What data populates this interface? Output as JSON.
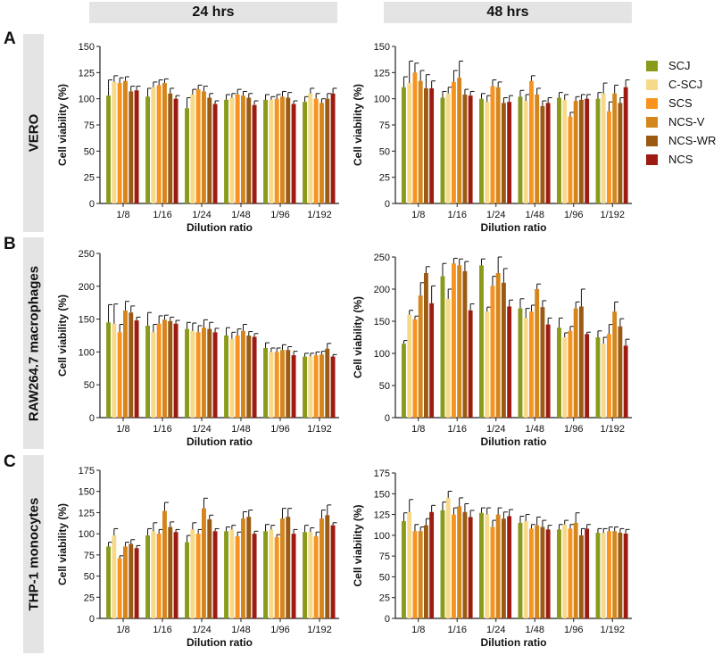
{
  "headers": {
    "col1": "24 hrs",
    "col2": "48 hrs"
  },
  "panels": {
    "a": {
      "letter": "A",
      "row_label": "VERO"
    },
    "b": {
      "letter": "B",
      "row_label": "RAW264.7 macrophages"
    },
    "c": {
      "letter": "C",
      "row_label": "THP-1 monocytes"
    }
  },
  "legend": [
    {
      "name": "SCJ",
      "color": "#8a9a1b"
    },
    {
      "name": "C-SCJ",
      "color": "#f7d98a"
    },
    {
      "name": "SCS",
      "color": "#f7931e"
    },
    {
      "name": "NCS-V",
      "color": "#d4861d"
    },
    {
      "name": "NCS-WR",
      "color": "#9a5a14"
    },
    {
      "name": "NCS",
      "color": "#9e1b12"
    }
  ],
  "chart_data": [
    {
      "type": "bar",
      "id": "A-24h",
      "categories": [
        "1/8",
        "1/16",
        "1/24",
        "1/48",
        "1/96",
        "1/192"
      ],
      "xlabel": "Dilution ratio",
      "ylabel": "Cell viability (%)",
      "ylim": [
        0,
        150
      ],
      "yticks": [
        0,
        25,
        50,
        75,
        100,
        125,
        150
      ],
      "series": [
        {
          "name": "SCJ",
          "values": [
            103,
            102,
            91,
            99,
            99,
            97
          ],
          "errors": [
            15,
            8,
            10,
            5,
            5,
            5
          ]
        },
        {
          "name": "C-SCJ",
          "values": [
            116,
            111,
            104,
            101,
            99,
            105
          ],
          "errors": [
            6,
            5,
            5,
            4,
            3,
            5
          ]
        },
        {
          "name": "SCS",
          "values": [
            115,
            113,
            109,
            104,
            100,
            100
          ],
          "errors": [
            5,
            5,
            4,
            5,
            4,
            5
          ]
        },
        {
          "name": "NCS-V",
          "values": [
            117,
            115,
            107,
            103,
            102,
            96
          ],
          "errors": [
            4,
            4,
            5,
            4,
            5,
            4
          ]
        },
        {
          "name": "NCS-WR",
          "values": [
            107,
            105,
            101,
            101,
            101,
            100
          ],
          "errors": [
            5,
            5,
            4,
            4,
            5,
            5
          ]
        },
        {
          "name": "NCS",
          "values": [
            108,
            100,
            95,
            94,
            95,
            105
          ],
          "errors": [
            4,
            3,
            3,
            4,
            3,
            5
          ]
        }
      ]
    },
    {
      "type": "bar",
      "id": "A-48h",
      "categories": [
        "1/8",
        "1/16",
        "1/24",
        "1/48",
        "1/96",
        "1/192"
      ],
      "xlabel": "Dilution ratio",
      "ylabel": "Cell viability (%)",
      "ylim": [
        0,
        150
      ],
      "yticks": [
        0,
        25,
        50,
        75,
        100,
        125,
        150
      ],
      "series": [
        {
          "name": "SCJ",
          "values": [
            111,
            101,
            100,
            102,
            101,
            100
          ],
          "errors": [
            10,
            6,
            5,
            6,
            5,
            6
          ]
        },
        {
          "name": "C-SCJ",
          "values": [
            115,
            105,
            97,
            98,
            99,
            105
          ],
          "errors": [
            21,
            6,
            6,
            6,
            5,
            10
          ]
        },
        {
          "name": "SCS",
          "values": [
            125,
            116,
            112,
            117,
            83,
            88
          ],
          "errors": [
            9,
            11,
            6,
            5,
            4,
            9
          ]
        },
        {
          "name": "NCS-V",
          "values": [
            117,
            120,
            111,
            104,
            98,
            105
          ],
          "errors": [
            10,
            16,
            5,
            6,
            4,
            8
          ]
        },
        {
          "name": "NCS-WR",
          "values": [
            110,
            104,
            96,
            93,
            99,
            96
          ],
          "errors": [
            13,
            5,
            5,
            5,
            5,
            5
          ]
        },
        {
          "name": "NCS",
          "values": [
            110,
            103,
            97,
            96,
            100,
            111
          ],
          "errors": [
            7,
            4,
            6,
            5,
            4,
            7
          ]
        }
      ]
    },
    {
      "type": "bar",
      "id": "B-24h",
      "categories": [
        "1/8",
        "1/16",
        "1/24",
        "1/48",
        "1/96",
        "1/192"
      ],
      "xlabel": "Dilution ratio",
      "ylabel": "Cell viability (%)",
      "ylim": [
        0,
        250
      ],
      "yticks": [
        0,
        50,
        100,
        150,
        200,
        250
      ],
      "series": [
        {
          "name": "SCJ",
          "values": [
            145,
            140,
            135,
            125,
            106,
            93
          ],
          "errors": [
            27,
            20,
            10,
            12,
            8,
            5
          ]
        },
        {
          "name": "C-SCJ",
          "values": [
            143,
            130,
            132,
            120,
            100,
            93
          ],
          "errors": [
            30,
            12,
            12,
            10,
            6,
            5
          ]
        },
        {
          "name": "SCS",
          "values": [
            130,
            143,
            130,
            125,
            100,
            95
          ],
          "errors": [
            12,
            12,
            10,
            10,
            6,
            5
          ]
        },
        {
          "name": "NCS-V",
          "values": [
            163,
            149,
            137,
            132,
            103,
            96
          ],
          "errors": [
            14,
            7,
            12,
            10,
            8,
            5
          ]
        },
        {
          "name": "NCS-WR",
          "values": [
            160,
            147,
            135,
            125,
            103,
            105
          ],
          "errors": [
            10,
            6,
            10,
            6,
            5,
            8
          ]
        },
        {
          "name": "NCS",
          "values": [
            148,
            143,
            130,
            123,
            95,
            93
          ],
          "errors": [
            5,
            5,
            6,
            5,
            6,
            3
          ]
        }
      ]
    },
    {
      "type": "bar",
      "id": "B-48h",
      "categories": [
        "1/8",
        "1/16",
        "1/24",
        "1/48",
        "1/96",
        "1/192"
      ],
      "xlabel": "Dilution ratio",
      "ylabel": "Cell viability (%)",
      "ylim": [
        0,
        250
      ],
      "yticks": [
        0,
        50,
        100,
        150,
        200,
        250
      ],
      "series": [
        {
          "name": "SCJ",
          "values": [
            115,
            220,
            237,
            170,
            140,
            125
          ],
          "errors": [
            5,
            20,
            10,
            15,
            15,
            10
          ]
        },
        {
          "name": "C-SCJ",
          "values": [
            160,
            185,
            165,
            155,
            125,
            115
          ],
          "errors": [
            7,
            15,
            7,
            15,
            7,
            10
          ]
        },
        {
          "name": "SCS",
          "values": [
            153,
            240,
            205,
            165,
            135,
            130
          ],
          "errors": [
            5,
            8,
            15,
            10,
            7,
            15
          ]
        },
        {
          "name": "NCS-V",
          "values": [
            190,
            237,
            225,
            200,
            170,
            165
          ],
          "errors": [
            20,
            10,
            25,
            8,
            10,
            15
          ]
        },
        {
          "name": "NCS-WR",
          "values": [
            225,
            228,
            210,
            172,
            173,
            142
          ],
          "errors": [
            10,
            15,
            22,
            10,
            27,
            12
          ]
        },
        {
          "name": "NCS",
          "values": [
            178,
            167,
            173,
            145,
            130,
            112
          ],
          "errors": [
            27,
            10,
            10,
            10,
            3,
            10
          ]
        }
      ]
    },
    {
      "type": "bar",
      "id": "C-24h",
      "categories": [
        "1/8",
        "1/16",
        "1/24",
        "1/48",
        "1/96",
        "1/192"
      ],
      "xlabel": "Dilution ratio",
      "ylabel": "Cell viability (%)",
      "ylim": [
        0,
        175
      ],
      "yticks": [
        0,
        25,
        50,
        75,
        100,
        125,
        150,
        175
      ],
      "series": [
        {
          "name": "SCJ",
          "values": [
            85,
            98,
            90,
            103,
            103,
            102
          ],
          "errors": [
            5,
            8,
            8,
            5,
            8,
            8
          ]
        },
        {
          "name": "C-SCJ",
          "values": [
            98,
            103,
            105,
            105,
            105,
            102
          ],
          "errors": [
            8,
            10,
            8,
            5,
            5,
            5
          ]
        },
        {
          "name": "SCS",
          "values": [
            71,
            100,
            100,
            97,
            96,
            97
          ],
          "errors": [
            3,
            5,
            5,
            5,
            3,
            5
          ]
        },
        {
          "name": "NCS-V",
          "values": [
            85,
            127,
            130,
            118,
            118,
            118
          ],
          "errors": [
            5,
            10,
            12,
            8,
            12,
            10
          ]
        },
        {
          "name": "NCS-WR",
          "values": [
            88,
            108,
            117,
            120,
            120,
            122
          ],
          "errors": [
            5,
            6,
            5,
            8,
            10,
            12
          ]
        },
        {
          "name": "NCS",
          "values": [
            83,
            102,
            103,
            100,
            100,
            110
          ],
          "errors": [
            3,
            3,
            3,
            3,
            5,
            3
          ]
        }
      ]
    },
    {
      "type": "bar",
      "id": "C-48h",
      "categories": [
        "1/8",
        "1/16",
        "1/24",
        "1/48",
        "1/96",
        "1/192"
      ],
      "xlabel": "Dilution ratio",
      "ylabel": "Cell viability (%)",
      "ylim": [
        0,
        175
      ],
      "yticks": [
        0,
        25,
        50,
        75,
        100,
        125,
        150,
        175
      ],
      "series": [
        {
          "name": "SCJ",
          "values": [
            117,
            130,
            127,
            115,
            107,
            103
          ],
          "errors": [
            10,
            10,
            6,
            8,
            6,
            5
          ]
        },
        {
          "name": "C-SCJ",
          "values": [
            128,
            145,
            125,
            117,
            113,
            103
          ],
          "errors": [
            15,
            8,
            8,
            8,
            5,
            5
          ]
        },
        {
          "name": "SCS",
          "values": [
            105,
            125,
            110,
            108,
            108,
            105
          ],
          "errors": [
            8,
            8,
            8,
            5,
            5,
            5
          ]
        },
        {
          "name": "NCS-V",
          "values": [
            105,
            135,
            125,
            112,
            115,
            105
          ],
          "errors": [
            5,
            10,
            8,
            10,
            12,
            5
          ]
        },
        {
          "name": "NCS-WR",
          "values": [
            112,
            128,
            120,
            110,
            100,
            103
          ],
          "errors": [
            8,
            10,
            8,
            8,
            8,
            5
          ]
        },
        {
          "name": "NCS",
          "values": [
            128,
            122,
            123,
            107,
            108,
            102
          ],
          "errors": [
            8,
            8,
            8,
            5,
            5,
            5
          ]
        }
      ]
    }
  ]
}
